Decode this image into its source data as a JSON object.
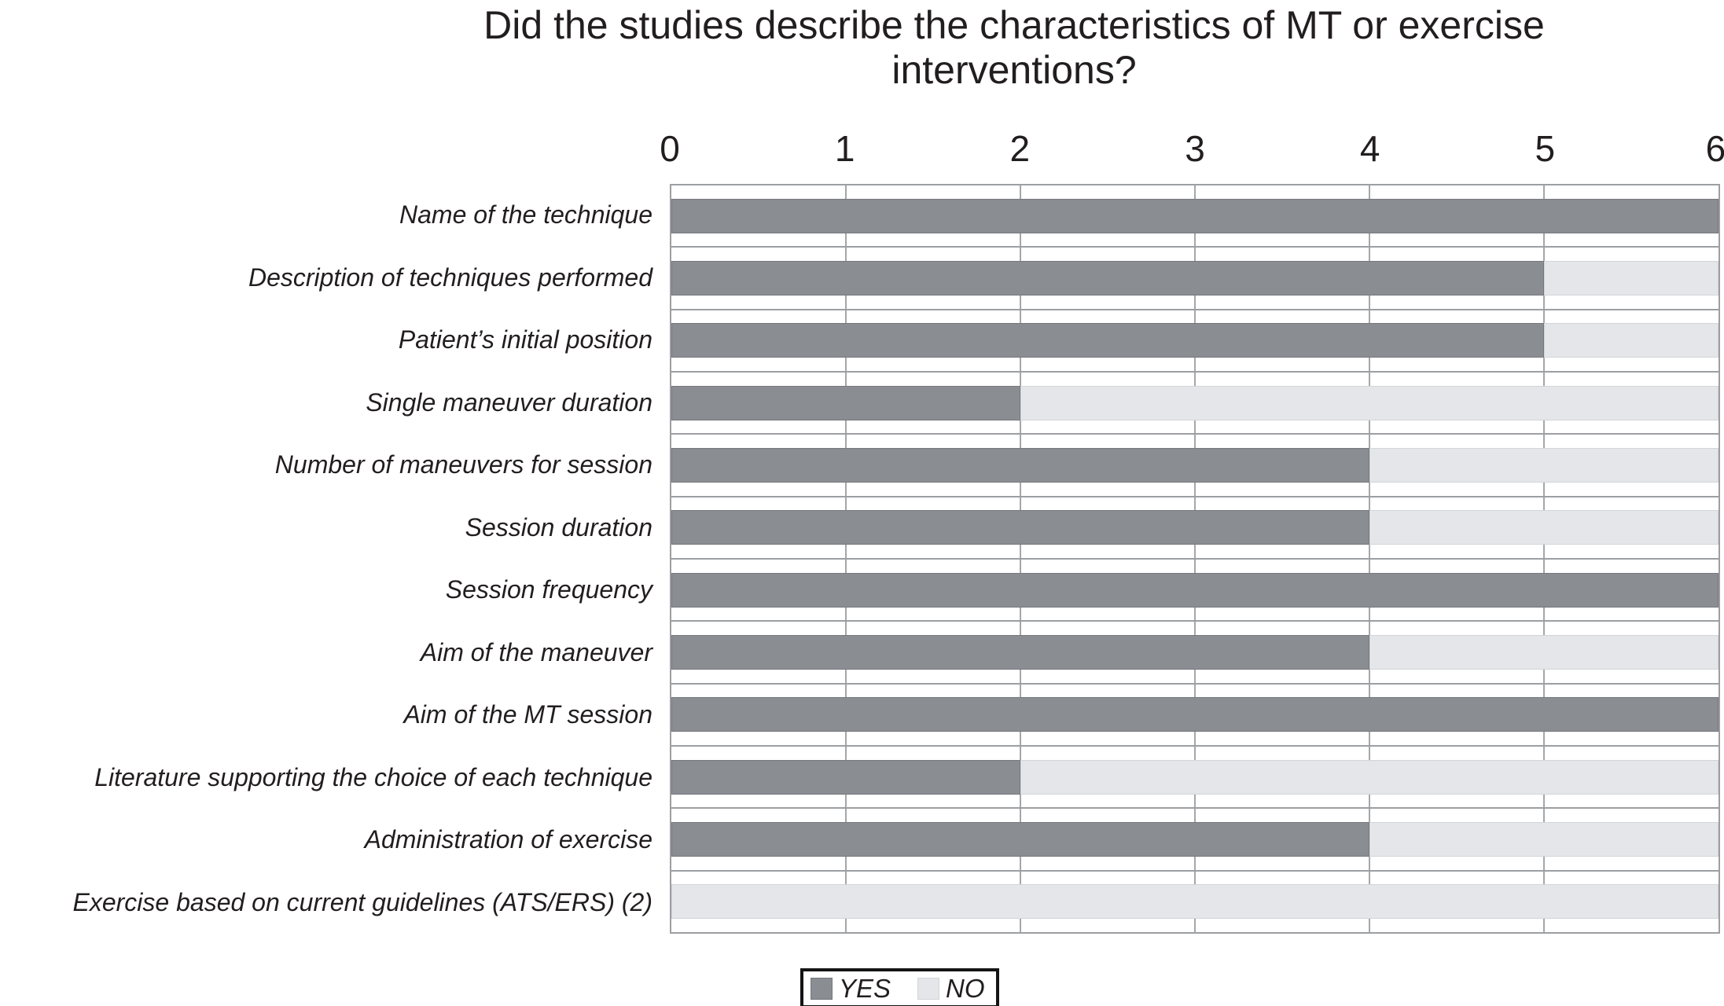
{
  "chart_data": {
    "type": "bar",
    "orientation": "horizontal",
    "stacked": true,
    "title": "Did the studies describe the characteristics of MT or exercise interventions?",
    "title_lines": [
      "Did the studies describe the characteristics of MT or exercise",
      "interventions?"
    ],
    "x_axis": {
      "position": "top",
      "min": 0,
      "max": 6,
      "ticks": [
        "0",
        "1",
        "2",
        "3",
        "4",
        "5",
        "6"
      ]
    },
    "grid": "vertical",
    "categories": [
      "Name of the technique",
      "Description of techniques performed",
      "Patient’s initial position",
      "Single maneuver duration",
      "Number of maneuvers for session",
      "Session duration",
      "Session frequency",
      "Aim of the maneuver",
      "Aim of the MT session",
      "Literature supporting the choice of each technique",
      "Administration of exercise",
      "Exercise based on current guidelines (ATS/ERS) (2)"
    ],
    "series": [
      {
        "name": "YES",
        "color": "#8a8d91",
        "values": [
          6,
          5,
          5,
          2,
          4,
          4,
          6,
          4,
          6,
          2,
          4,
          0
        ]
      },
      {
        "name": "NO",
        "color": "#e4e6e9",
        "values": [
          0,
          1,
          1,
          4,
          2,
          2,
          0,
          2,
          0,
          4,
          2,
          6
        ]
      }
    ],
    "legend": {
      "position": "bottom",
      "entries": [
        "YES",
        "NO"
      ]
    }
  },
  "colors": {
    "yes_fill": "#8a8d91",
    "no_fill": "#e4e6e9",
    "gridline": "#a4a7aa",
    "plot_border": "#9c9fa2",
    "text": "#221e1f"
  }
}
